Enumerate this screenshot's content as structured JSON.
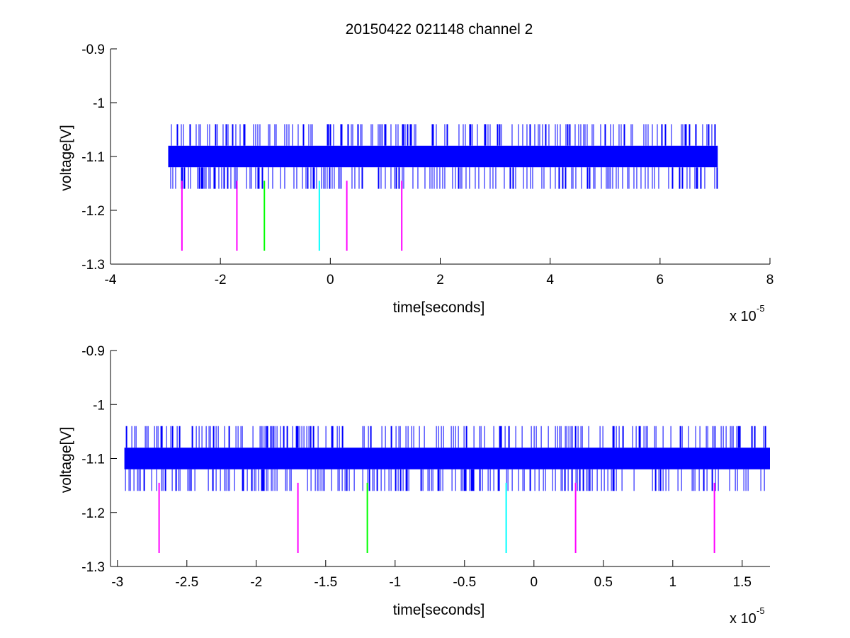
{
  "figure": {
    "title": "20150422 021148 channel 2",
    "colors": {
      "trace": "#0000ff",
      "magenta": "#ff00ff",
      "green": "#00ff00",
      "cyan": "#00ffff",
      "axes": "#000000"
    }
  },
  "chart_data": [
    {
      "type": "line",
      "xlabel": "time[seconds]",
      "ylabel": "voltage[V]",
      "x_multiplier_label": "x 10",
      "x_multiplier_exponent": "-5",
      "xlim": [
        -4,
        8
      ],
      "ylim": [
        -1.3,
        -0.9
      ],
      "xticks": [
        -4,
        -2,
        0,
        2,
        4,
        6,
        8
      ],
      "xtick_labels": [
        "-4",
        "-2",
        "0",
        "2",
        "4",
        "6",
        "8"
      ],
      "yticks": [
        -1.3,
        -1.2,
        -1.1,
        -1.0,
        -0.9
      ],
      "ytick_labels": [
        "-1.3",
        "-1.2",
        "-1.1",
        "-1",
        "-0.9"
      ],
      "grid": false,
      "series": [
        {
          "color": "#0000ff",
          "x_range": [
            -2.95,
            7.05
          ],
          "baseline_band": [
            -1.12,
            -1.08
          ],
          "spike_levels": [
            -1.16,
            -1.04
          ]
        }
      ],
      "markers": [
        {
          "x": -2.7,
          "y": [
            -1.275,
            -1.145
          ],
          "color": "#ff00ff"
        },
        {
          "x": -1.7,
          "y": [
            -1.275,
            -1.145
          ],
          "color": "#ff00ff"
        },
        {
          "x": -1.2,
          "y": [
            -1.275,
            -1.145
          ],
          "color": "#00ff00"
        },
        {
          "x": -0.2,
          "y": [
            -1.275,
            -1.145
          ],
          "color": "#00ffff"
        },
        {
          "x": 0.3,
          "y": [
            -1.275,
            -1.145
          ],
          "color": "#ff00ff"
        },
        {
          "x": 1.3,
          "y": [
            -1.275,
            -1.145
          ],
          "color": "#ff00ff"
        }
      ]
    },
    {
      "type": "line",
      "xlabel": "time[seconds]",
      "ylabel": "voltage[V]",
      "x_multiplier_label": "x 10",
      "x_multiplier_exponent": "-5",
      "xlim": [
        -3.05,
        1.7
      ],
      "ylim": [
        -1.3,
        -0.9
      ],
      "xticks": [
        -3,
        -2.5,
        -2,
        -1.5,
        -1,
        -0.5,
        0,
        0.5,
        1,
        1.5
      ],
      "xtick_labels": [
        "-3",
        "-2.5",
        "-2",
        "-1.5",
        "-1",
        "-0.5",
        "0",
        "0.5",
        "1",
        "1.5"
      ],
      "yticks": [
        -1.3,
        -1.2,
        -1.1,
        -1.0,
        -0.9
      ],
      "ytick_labels": [
        "-1.3",
        "-1.2",
        "-1.1",
        "-1",
        "-0.9"
      ],
      "grid": false,
      "series": [
        {
          "color": "#0000ff",
          "x_range": [
            -2.95,
            1.7
          ],
          "baseline_band": [
            -1.12,
            -1.08
          ],
          "spike_levels": [
            -1.16,
            -1.04
          ]
        }
      ],
      "markers": [
        {
          "x": -2.7,
          "y": [
            -1.275,
            -1.145
          ],
          "color": "#ff00ff"
        },
        {
          "x": -1.7,
          "y": [
            -1.275,
            -1.145
          ],
          "color": "#ff00ff"
        },
        {
          "x": -1.2,
          "y": [
            -1.275,
            -1.145
          ],
          "color": "#00ff00"
        },
        {
          "x": -0.2,
          "y": [
            -1.275,
            -1.145
          ],
          "color": "#00ffff"
        },
        {
          "x": 0.3,
          "y": [
            -1.275,
            -1.145
          ],
          "color": "#ff00ff"
        },
        {
          "x": 1.3,
          "y": [
            -1.275,
            -1.145
          ],
          "color": "#ff00ff"
        }
      ]
    }
  ]
}
